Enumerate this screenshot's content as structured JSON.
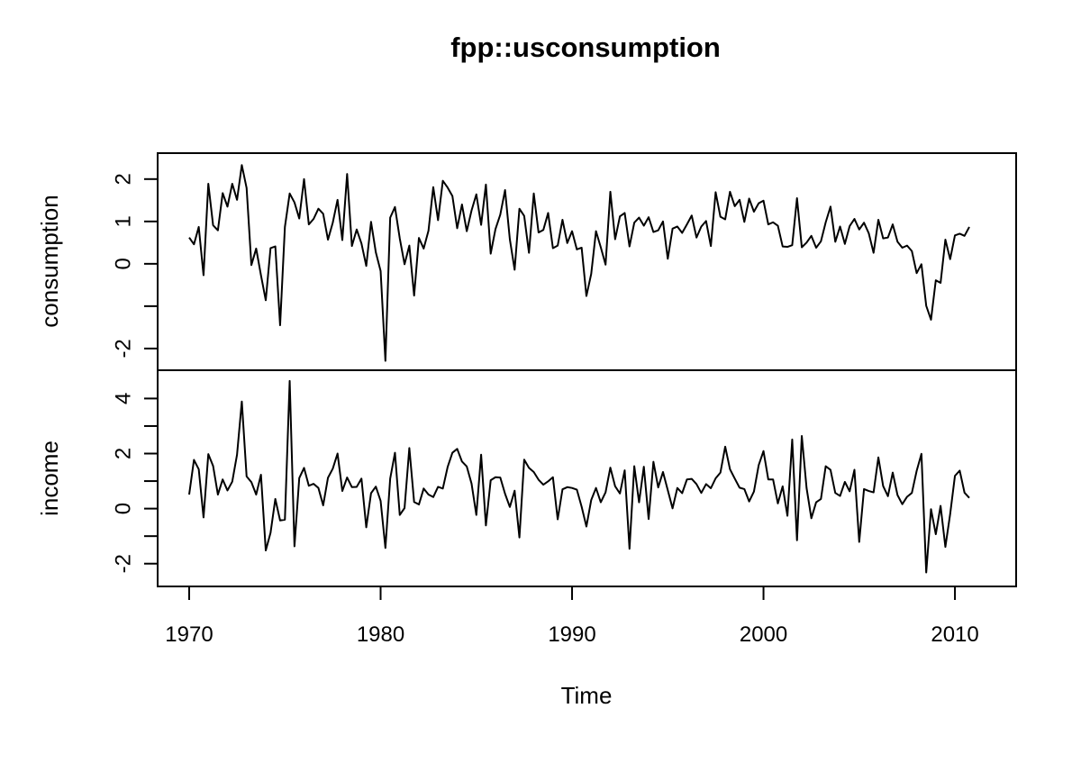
{
  "chart_data": {
    "type": "line",
    "title": "fpp::usconsumption",
    "xlabel": "Time",
    "x_start": 1970.0,
    "x_step": 0.25,
    "xlim": [
      1970,
      2010.75
    ],
    "x_ticks": [
      "1970",
      "1980",
      "1990",
      "2000",
      "2010"
    ],
    "panels": [
      {
        "name": "consumption",
        "ylabel": "consumption",
        "ylim": [
          -2.3,
          2.4
        ],
        "y_ticks": [
          "-2",
          "0",
          "1",
          "2"
        ],
        "values": [
          0.62,
          0.46,
          0.87,
          -0.27,
          1.89,
          0.91,
          0.79,
          1.67,
          1.35,
          1.89,
          1.51,
          2.33,
          1.79,
          -0.03,
          0.36,
          -0.27,
          -0.86,
          0.37,
          0.41,
          -1.45,
          0.87,
          1.66,
          1.45,
          1.07,
          2.0,
          0.93,
          1.06,
          1.3,
          1.18,
          0.57,
          0.97,
          1.51,
          0.56,
          2.12,
          0.42,
          0.81,
          0.48,
          -0.05,
          0.99,
          0.27,
          -0.17,
          -2.29,
          1.09,
          1.34,
          0.6,
          -0.01,
          0.43,
          -0.75,
          0.61,
          0.36,
          0.78,
          1.81,
          1.03,
          1.96,
          1.8,
          1.6,
          0.84,
          1.4,
          0.77,
          1.26,
          1.64,
          0.92,
          1.87,
          0.24,
          0.82,
          1.16,
          1.74,
          0.58,
          -0.14,
          1.3,
          1.13,
          0.26,
          1.66,
          0.74,
          0.8,
          1.2,
          0.37,
          0.43,
          1.04,
          0.49,
          0.77,
          0.34,
          0.38,
          -0.76,
          -0.24,
          0.77,
          0.39,
          -0.02,
          1.7,
          0.58,
          1.12,
          1.2,
          0.41,
          0.97,
          1.09,
          0.9,
          1.1,
          0.75,
          0.79,
          1.0,
          0.12,
          0.83,
          0.88,
          0.73,
          0.93,
          1.14,
          0.62,
          0.88,
          1.01,
          0.42,
          1.69,
          1.11,
          1.05,
          1.7,
          1.36,
          1.51,
          0.99,
          1.54,
          1.23,
          1.43,
          1.49,
          0.93,
          0.98,
          0.9,
          0.41,
          0.4,
          0.44,
          1.55,
          0.39,
          0.5,
          0.66,
          0.38,
          0.53,
          0.98,
          1.35,
          0.52,
          0.88,
          0.47,
          0.89,
          1.06,
          0.81,
          0.97,
          0.72,
          0.26,
          1.04,
          0.6,
          0.62,
          0.93,
          0.52,
          0.38,
          0.43,
          0.3,
          -0.22,
          -0.01,
          -0.99,
          -1.32,
          -0.39,
          -0.45,
          0.57,
          0.11,
          0.67,
          0.71,
          0.66,
          0.87
        ]
      },
      {
        "name": "income",
        "ylabel": "income",
        "ylim": [
          -2.5,
          4.7
        ],
        "y_ticks": [
          "-2",
          "0",
          "2",
          "4"
        ],
        "values": [
          0.51,
          1.77,
          1.43,
          -0.32,
          1.98,
          1.55,
          0.51,
          1.06,
          0.66,
          0.98,
          1.96,
          3.89,
          1.17,
          0.96,
          0.51,
          1.23,
          -1.52,
          -0.88,
          0.35,
          -0.43,
          -0.4,
          4.64,
          -1.37,
          1.11,
          1.48,
          0.83,
          0.9,
          0.75,
          0.12,
          1.12,
          1.45,
          2.0,
          0.64,
          1.13,
          0.78,
          0.79,
          1.09,
          -0.68,
          0.56,
          0.8,
          0.28,
          -1.43,
          1.09,
          2.03,
          -0.23,
          0.02,
          2.2,
          0.24,
          0.15,
          0.73,
          0.51,
          0.42,
          0.79,
          0.73,
          1.51,
          2.03,
          2.17,
          1.71,
          1.53,
          0.91,
          -0.23,
          1.96,
          -0.61,
          1.03,
          1.14,
          1.13,
          0.54,
          0.06,
          0.65,
          -1.05,
          1.78,
          1.48,
          1.33,
          1.05,
          0.87,
          0.99,
          1.14,
          -0.39,
          0.7,
          0.78,
          0.75,
          0.69,
          0.07,
          -0.65,
          0.31,
          0.75,
          0.23,
          0.59,
          1.49,
          0.81,
          0.55,
          1.39,
          -1.46,
          1.54,
          0.23,
          1.52,
          -0.38,
          1.7,
          0.77,
          1.33,
          0.67,
          0.01,
          0.75,
          0.56,
          1.06,
          1.08,
          0.89,
          0.57,
          0.89,
          0.74,
          1.1,
          1.31,
          2.25,
          1.43,
          1.09,
          0.76,
          0.71,
          0.26,
          0.62,
          1.58,
          2.09,
          1.06,
          1.06,
          0.19,
          0.81,
          -0.26,
          2.51,
          -1.15,
          2.64,
          0.75,
          -0.35,
          0.23,
          0.35,
          1.54,
          1.41,
          0.57,
          0.46,
          0.97,
          0.63,
          1.41,
          -1.21,
          0.71,
          0.64,
          0.59,
          1.86,
          0.82,
          0.45,
          1.31,
          0.49,
          0.16,
          0.43,
          0.57,
          1.37,
          1.99,
          -2.32,
          -0.02,
          -0.93,
          0.1,
          -1.39,
          -0.2,
          1.19,
          1.38,
          0.58,
          0.39
        ]
      }
    ]
  }
}
